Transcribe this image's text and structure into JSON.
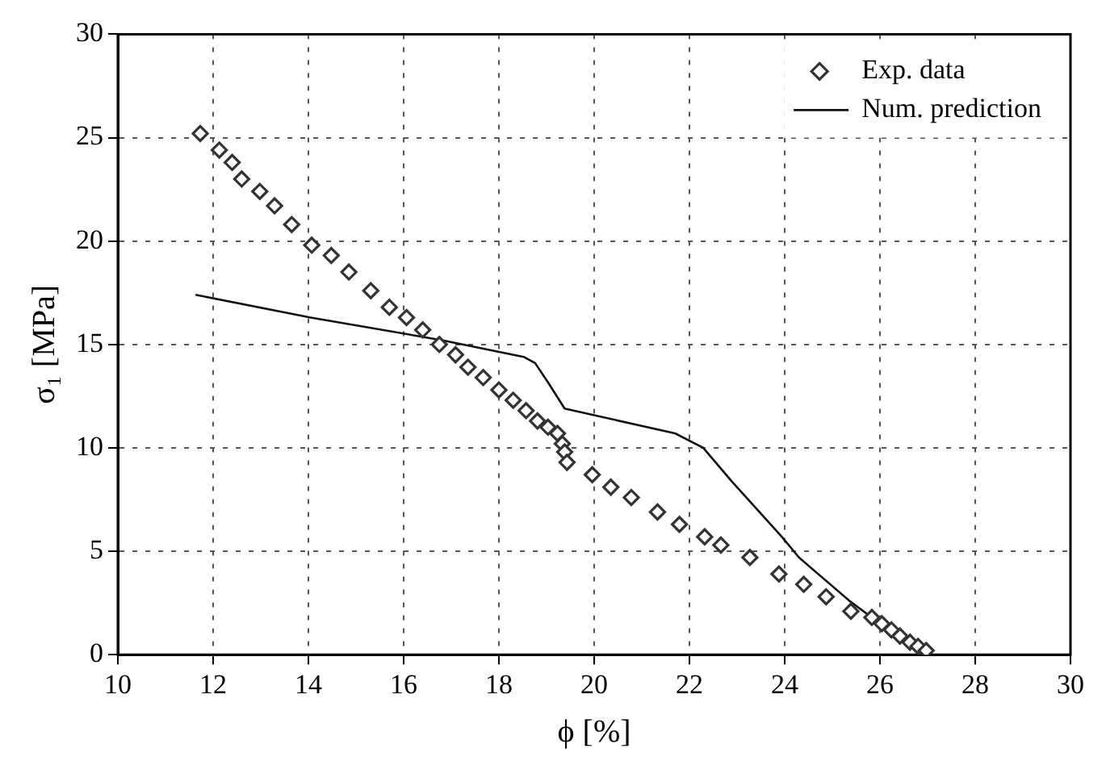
{
  "chart_data": {
    "type": "scatter",
    "xlabel": "ϕ [%]",
    "ylabel": "σ₁ [MPa]",
    "xlim": [
      10,
      30
    ],
    "ylim": [
      0,
      30
    ],
    "xticks": [
      10,
      12,
      14,
      16,
      18,
      20,
      22,
      24,
      26,
      28,
      30
    ],
    "yticks": [
      0,
      5,
      10,
      15,
      20,
      25,
      30
    ],
    "grid": true,
    "legend": "top right",
    "series": [
      {
        "name": "Exp. data",
        "type": "scatter",
        "marker": "diamond",
        "color": "#333333",
        "x": [
          11.73,
          12.13,
          12.4,
          12.6,
          12.98,
          13.29,
          13.65,
          14.07,
          14.48,
          14.85,
          15.31,
          15.7,
          16.06,
          16.4,
          16.75,
          17.09,
          17.35,
          17.67,
          18.0,
          18.3,
          18.57,
          18.81,
          19.03,
          19.23,
          19.33,
          19.38,
          19.43,
          19.96,
          20.35,
          20.78,
          21.33,
          21.79,
          22.32,
          22.66,
          23.27,
          23.88,
          24.4,
          24.87,
          25.39,
          25.83,
          26.04,
          26.24,
          26.42,
          26.63,
          26.8,
          26.97
        ],
        "values": [
          25.2,
          24.4,
          23.8,
          23.0,
          22.4,
          21.7,
          20.8,
          19.8,
          19.3,
          18.5,
          17.6,
          16.8,
          16.3,
          15.7,
          15.0,
          14.5,
          13.9,
          13.4,
          12.8,
          12.3,
          11.8,
          11.3,
          11.0,
          10.7,
          10.2,
          9.8,
          9.3,
          8.7,
          8.1,
          7.6,
          6.9,
          6.3,
          5.7,
          5.3,
          4.7,
          3.9,
          3.4,
          2.8,
          2.1,
          1.8,
          1.5,
          1.2,
          0.9,
          0.6,
          0.4,
          0.2
        ]
      },
      {
        "name": "Num. prediction",
        "type": "line",
        "marker": "none",
        "line_style": "solid",
        "color": "#111111",
        "x": [
          11.63,
          14.05,
          16.82,
          18.52,
          18.76,
          19.05,
          19.38,
          21.7,
          22.29,
          22.88,
          23.94,
          24.3,
          25.36,
          26.18,
          26.95
        ],
        "values": [
          17.4,
          16.3,
          15.2,
          14.4,
          14.1,
          13.1,
          11.9,
          10.7,
          10.0,
          8.4,
          5.7,
          4.7,
          2.6,
          1.2,
          0
        ]
      }
    ]
  }
}
